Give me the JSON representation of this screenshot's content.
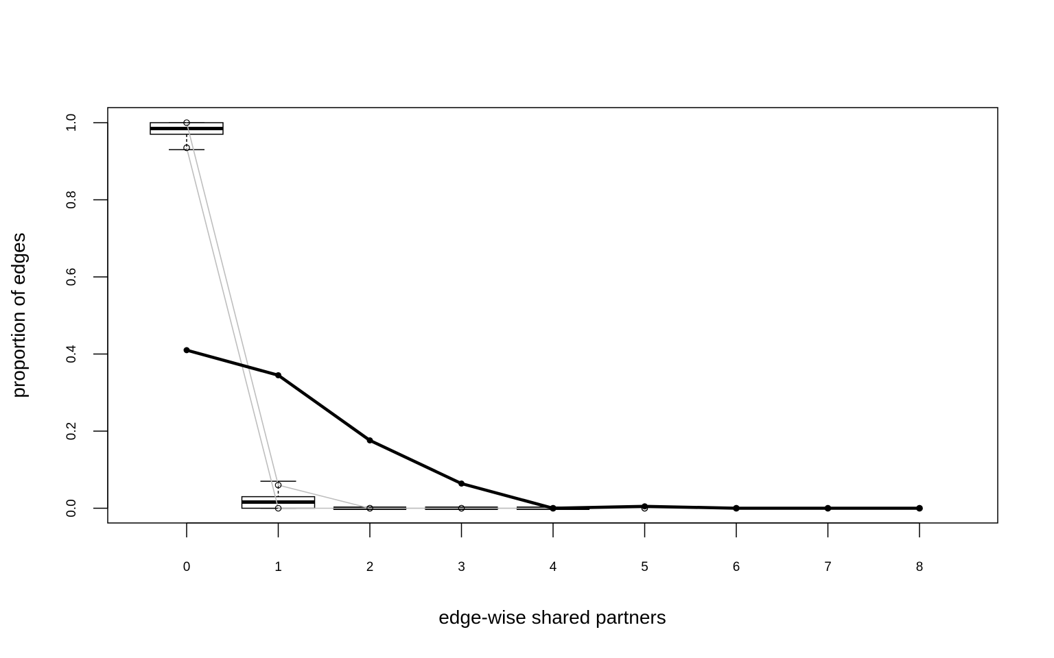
{
  "chart_data": {
    "type": "line",
    "xlabel": "edge-wise shared partners",
    "ylabel": "proportion of edges",
    "x_ticks": [
      "0",
      "1",
      "2",
      "3",
      "4",
      "5",
      "6",
      "7",
      "8"
    ],
    "y_ticks": [
      "0.0",
      "0.2",
      "0.4",
      "0.6",
      "0.8",
      "1.0"
    ],
    "xlim": [
      -0.87,
      8.87
    ],
    "ylim": [
      -0.04,
      1.04
    ],
    "grid": false,
    "legend": "none",
    "boxplots": [
      {
        "x": 0,
        "whisker_low": 0.93,
        "q1": 0.97,
        "median": 0.985,
        "q3": 1.0,
        "whisker_high": 1.0,
        "outliers": []
      },
      {
        "x": 1,
        "whisker_low": 0.0,
        "q1": 0.0,
        "median": 0.016,
        "q3": 0.03,
        "whisker_high": 0.07,
        "outliers": []
      },
      {
        "x": 2,
        "whisker_low": 0.0,
        "q1": 0.0,
        "median": 0.0,
        "q3": 0.0,
        "whisker_high": 0.0,
        "outliers": []
      },
      {
        "x": 3,
        "whisker_low": 0.0,
        "q1": 0.0,
        "median": 0.0,
        "q3": 0.0,
        "whisker_high": 0.0,
        "outliers": []
      },
      {
        "x": 4,
        "whisker_low": 0.0,
        "q1": 0.0,
        "median": 0.0,
        "q3": 0.0,
        "whisker_high": 0.0,
        "outliers": []
      }
    ],
    "series": [
      {
        "style": "observed",
        "color": "#000000",
        "x": [
          0,
          1,
          2,
          3,
          4,
          5,
          6,
          7,
          8
        ],
        "values": [
          0.41,
          0.345,
          0.176,
          0.064,
          0.0,
          0.005,
          0.0,
          0.0,
          0.0
        ]
      },
      {
        "style": "simulation-range-upper",
        "color": "#bebebe",
        "x": [
          0,
          1,
          2,
          3,
          4,
          5,
          6,
          7,
          8
        ],
        "values": [
          1.0,
          0.06,
          0.0,
          0.0,
          0.0,
          0.0,
          0.0,
          0.0,
          0.0
        ]
      },
      {
        "style": "simulation-range-lower",
        "color": "#bebebe",
        "x": [
          0,
          1,
          2,
          3,
          4,
          5,
          6,
          7,
          8
        ],
        "values": [
          0.935,
          0.0,
          0.0,
          0.0,
          0.0,
          0.0,
          0.0,
          0.0,
          0.0
        ]
      }
    ]
  }
}
